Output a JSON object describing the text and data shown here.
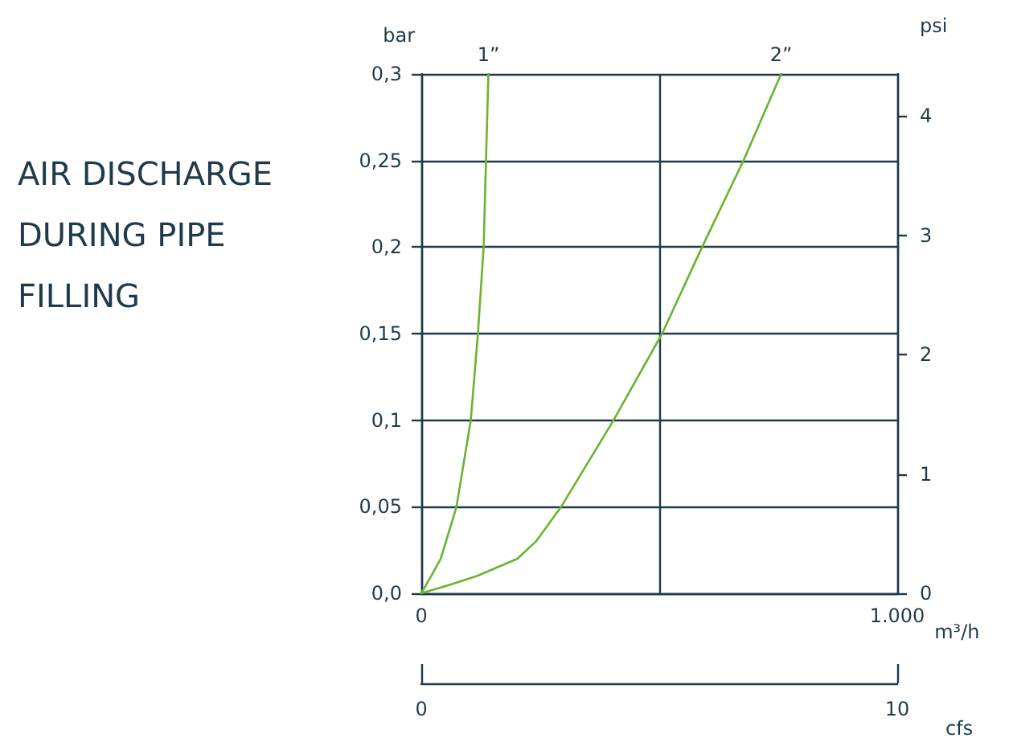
{
  "chart_data": {
    "type": "line",
    "title": "AIR DISCHARGE DURING PIPE FILLING",
    "xlabel": "m³/h",
    "ylabel": "bar",
    "y2label": "psi",
    "x2label": "cfs",
    "xlim": [
      0,
      1000
    ],
    "xticks": [
      0,
      {
        "value": 500,
        "label": null
      },
      {
        "value": 1000,
        "label": "1.000"
      }
    ],
    "ylim": [
      0,
      0.3
    ],
    "yticks": [
      {
        "value": 0,
        "label": "0,0"
      },
      {
        "value": 0.05,
        "label": "0,05"
      },
      {
        "value": 0.1,
        "label": "0,1"
      },
      {
        "value": 0.15,
        "label": "0,15"
      },
      {
        "value": 0.2,
        "label": "0,2"
      },
      {
        "value": 0.25,
        "label": "0,25"
      },
      {
        "value": 0.3,
        "label": "0,3"
      }
    ],
    "y2lim": [
      0,
      4.351
    ],
    "y2ticks": [
      0,
      1,
      2,
      3,
      4
    ],
    "x2lim": [
      0,
      10
    ],
    "x2ticks": [
      0,
      10
    ],
    "grid": true,
    "legend": false,
    "marker": "none",
    "line_style": "solid",
    "series": [
      {
        "name": "1”",
        "color": "#6ab42d",
        "x": [
          0,
          21,
          41,
          74,
          104,
          119,
          131,
          136,
          141
        ],
        "values": [
          0,
          0.01,
          0.02,
          0.05,
          0.1,
          0.15,
          0.2,
          0.25,
          0.3
        ]
      },
      {
        "name": "2”",
        "color": "#6ab42d",
        "x": [
          0,
          61,
          117,
          202,
          241,
          294,
          404,
          506,
          590,
          677,
          756
        ],
        "values": [
          0,
          0.005,
          0.01,
          0.02,
          0.03,
          0.05,
          0.1,
          0.15,
          0.2,
          0.25,
          0.3
        ]
      }
    ]
  }
}
